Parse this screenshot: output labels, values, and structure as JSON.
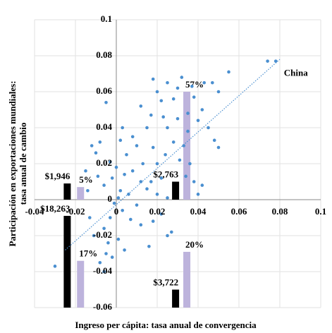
{
  "chart_data": {
    "type": "scatter",
    "x_label": "Ingreso per cápita: tasa anual de convergencia",
    "y_label": [
      "Participación en exportaciones mundiales:",
      "tasa anual de cambio"
    ],
    "xlim": [
      -0.04,
      0.1
    ],
    "ylim": [
      -0.06,
      0.1
    ],
    "xticks": [
      -0.04,
      -0.02,
      0,
      0.02,
      0.04,
      0.06,
      0.08,
      0.1
    ],
    "yticks": [
      -0.06,
      -0.04,
      -0.02,
      0,
      0.02,
      0.04,
      0.06,
      0.08,
      0.1
    ],
    "grid": true,
    "color": "#4a8fd0",
    "x": [
      -0.03,
      0.074,
      0.078,
      0.055,
      0.047,
      0.043,
      0.05,
      0.032,
      0.018,
      0.025,
      0.03,
      0.037,
      0.02,
      0.012,
      0.022,
      0.028,
      0.038,
      0.042,
      0.035,
      0.017,
      0.023,
      0.03,
      0.04,
      0.045,
      0.048,
      0.05,
      0.035,
      0.025,
      0.015,
      0.008,
      0.003,
      -0.005,
      -0.008,
      -0.012,
      -0.015,
      -0.014,
      -0.01,
      -0.003,
      0.002,
      0.005,
      0.01,
      0.013,
      0.018,
      0.02,
      0.024,
      0.028,
      0.033,
      0.04,
      0.038,
      0.034,
      0.022,
      0.017,
      0.012,
      0.008,
      0.004,
      0,
      -0.002,
      -0.006,
      0.002,
      0.006,
      0.01,
      0.015,
      0.02,
      0.025,
      0.001,
      -0.001,
      0.003,
      0.007,
      0.012,
      0.018,
      0.022,
      0.027,
      0.025,
      -0.003,
      -0.006,
      -0.004,
      -0.002,
      -0.005,
      0.001,
      0.004,
      -0.008,
      -0.006,
      -0.011,
      -0.013,
      0.016,
      0.031,
      0.036,
      -0.009,
      0.042
    ],
    "values": [
      -0.037,
      0.077,
      0.077,
      0.071,
      0.065,
      0.065,
      0.06,
      0.068,
      0.067,
      0.065,
      0.062,
      0.063,
      0.06,
      0.052,
      0.055,
      0.056,
      0.057,
      0.05,
      0.048,
      0.047,
      0.046,
      0.045,
      0.044,
      0.04,
      0.033,
      0.029,
      0.038,
      0.04,
      0.04,
      0.035,
      0.04,
      0.054,
      0.032,
      0.03,
      0.016,
      0.005,
      0.026,
      0.021,
      0.033,
      0.025,
      0.03,
      0.02,
      0.029,
      0.02,
      0.025,
      0.032,
      0.03,
      0.003,
      0.01,
      0.013,
      0.012,
      0.01,
      0.01,
      0.016,
      0.014,
      0.018,
      0.012,
      0.008,
      0.005,
      0.003,
      -0.003,
      0.006,
      0.003,
      0.001,
      0.001,
      -0.002,
      -0.006,
      -0.011,
      -0.014,
      -0.012,
      -0.008,
      -0.018,
      -0.02,
      -0.01,
      -0.016,
      -0.024,
      -0.032,
      -0.03,
      -0.022,
      -0.028,
      -0.035,
      -0.04,
      -0.02,
      -0.01,
      -0.026,
      0.022,
      0.02,
      0.013,
      0.008
    ],
    "trendline": {
      "color": "#4a8fd0",
      "x": [
        -0.025,
        0.08
      ],
      "y": [
        -0.028,
        0.078
      ]
    },
    "point_label": {
      "text": "China",
      "x": 0.082,
      "y": 0.07
    },
    "bars": [
      {
        "x": -0.024,
        "bottom": 0,
        "top": 0.009,
        "color": "#000000",
        "label": "$1,946"
      },
      {
        "x": -0.0175,
        "bottom": 0,
        "top": 0.007,
        "color": "#bdb3dc",
        "label": "5%"
      },
      {
        "x": -0.024,
        "bottom": -0.06,
        "top": -0.009,
        "color": "#000000",
        "label": "$18,263"
      },
      {
        "x": -0.0175,
        "bottom": -0.06,
        "top": -0.034,
        "color": "#bdb3dc",
        "label": "17%"
      },
      {
        "x": 0.029,
        "bottom": 0,
        "top": 0.01,
        "color": "#000000",
        "label": "$2,763"
      },
      {
        "x": 0.0345,
        "bottom": 0,
        "top": 0.06,
        "color": "#bdb3dc",
        "label": "57%"
      },
      {
        "x": 0.029,
        "bottom": -0.06,
        "top": -0.05,
        "color": "#000000",
        "label": "$3,722"
      },
      {
        "x": 0.0345,
        "bottom": -0.06,
        "top": -0.029,
        "color": "#bdb3dc",
        "label": "20%"
      }
    ]
  }
}
